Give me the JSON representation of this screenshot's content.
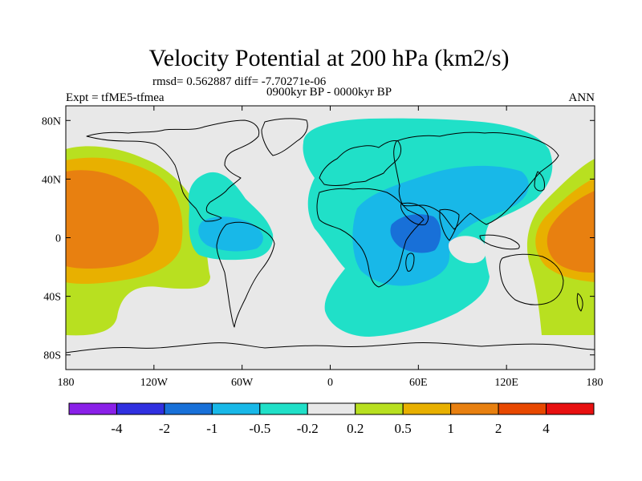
{
  "title": "Velocity Potential at 200 hPa (km2/s)",
  "stats_line": "rmsd= 0.562887 diff= -7.70271e-06",
  "experiment": "Expt = tfME5-tfmea",
  "period": "0900kyr BP - 0000kyr BP",
  "season": "ANN",
  "map": {
    "projection": "cylindrical equidistant",
    "lon_range": [
      -180,
      180
    ],
    "lat_range": [
      -90,
      90
    ],
    "xticks": [
      {
        "lon": -180,
        "label": "180"
      },
      {
        "lon": -120,
        "label": "120W"
      },
      {
        "lon": -60,
        "label": "60W"
      },
      {
        "lon": 0,
        "label": "0"
      },
      {
        "lon": 60,
        "label": "60E"
      },
      {
        "lon": 120,
        "label": "120E"
      },
      {
        "lon": 180,
        "label": "180"
      }
    ],
    "yticks": [
      {
        "lat": 80,
        "label": "80N"
      },
      {
        "lat": 40,
        "label": "40N"
      },
      {
        "lat": 0,
        "label": "0"
      },
      {
        "lat": -40,
        "label": "40S"
      },
      {
        "lat": -80,
        "label": "80S"
      }
    ],
    "background_color": "#e8e8e8"
  },
  "colorbar": {
    "colors": [
      "#8a20e8",
      "#3030e0",
      "#1870d8",
      "#18b8e8",
      "#20e0c8",
      "#e8e8e8",
      "#b8e020",
      "#e8b000",
      "#e88010",
      "#e84800",
      "#e81010"
    ],
    "labels": [
      "-4",
      "-2",
      "-1",
      "-0.5",
      "-0.2",
      "0.2",
      "0.5",
      "1",
      "2",
      "4"
    ]
  }
}
